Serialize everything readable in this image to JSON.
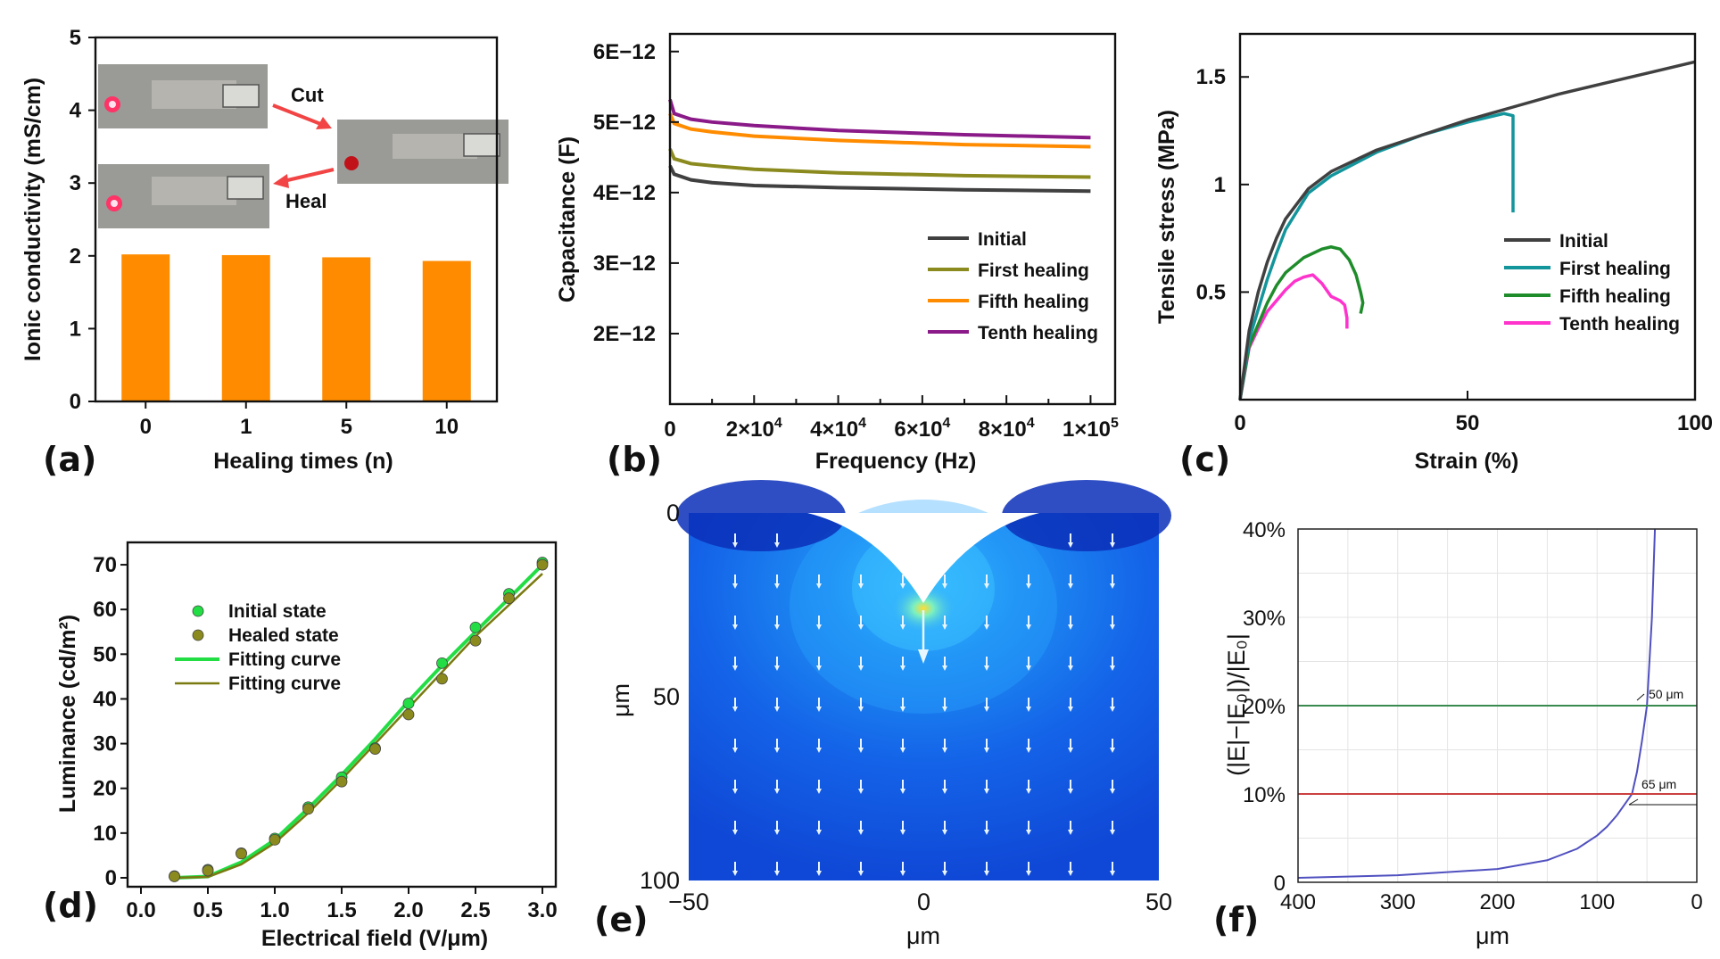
{
  "chart_data": [
    {
      "panel": "(a)",
      "type": "bar",
      "xlabel": "Healing times (n)",
      "ylabel": "Ionic conductivity (mS/cm)",
      "categories": [
        "0",
        "1",
        "5",
        "10"
      ],
      "values": [
        2.02,
        2.01,
        1.98,
        1.93
      ],
      "ylim": [
        0,
        5
      ],
      "yticks": [
        "0",
        "1",
        "2",
        "3",
        "4",
        "5"
      ],
      "color": "#ff8c00",
      "annotations": [
        "Cut",
        "Heal"
      ]
    },
    {
      "panel": "(b)",
      "type": "line",
      "xlabel": "Frequency (Hz)",
      "ylabel": "Capacitance (F)",
      "xlim": [
        0,
        110000
      ],
      "ylim": [
        1e-12,
        6.2e-12
      ],
      "xticks": [
        "0",
        "2×10",
        "4×10",
        "6×10",
        "8×10",
        "1×10"
      ],
      "xtick_exp": "4",
      "xtick_exp_last": "5",
      "yticks": [
        "2E−12",
        "3E−12",
        "4E−12",
        "5E−12",
        "6E−12"
      ],
      "series": [
        {
          "name": "Initial",
          "color": "#404040",
          "x": [
            0,
            1000,
            5000,
            10000,
            20000,
            40000,
            70000,
            100000
          ],
          "y": [
            4.38e-12,
            4.26e-12,
            4.18e-12,
            4.14e-12,
            4.1e-12,
            4.07e-12,
            4.04e-12,
            4.02e-12
          ]
        },
        {
          "name": "First healing",
          "color": "#8a8a1e",
          "x": [
            0,
            1000,
            5000,
            10000,
            20000,
            40000,
            70000,
            100000
          ],
          "y": [
            4.62e-12,
            4.48e-12,
            4.41e-12,
            4.38e-12,
            4.33e-12,
            4.28e-12,
            4.24e-12,
            4.22e-12
          ]
        },
        {
          "name": "Fifth healing",
          "color": "#ff8c00",
          "x": [
            0,
            1000,
            5000,
            10000,
            20000,
            40000,
            70000,
            100000
          ],
          "y": [
            5.12e-12,
            4.98e-12,
            4.9e-12,
            4.86e-12,
            4.8e-12,
            4.74e-12,
            4.68e-12,
            4.65e-12
          ]
        },
        {
          "name": "Tenth healing",
          "color": "#8b1a89",
          "x": [
            0,
            1000,
            5000,
            10000,
            20000,
            40000,
            70000,
            100000
          ],
          "y": [
            5.32e-12,
            5.12e-12,
            5.04e-12,
            5e-12,
            4.95e-12,
            4.88e-12,
            4.82e-12,
            4.78e-12
          ]
        }
      ]
    },
    {
      "panel": "(c)",
      "type": "line",
      "xlabel": "Strain (%)",
      "ylabel": "Tensile stress (MPa)",
      "xlim": [
        0,
        100
      ],
      "ylim": [
        0,
        1.7
      ],
      "xticks": [
        "0",
        "50",
        "100"
      ],
      "yticks": [
        "0.5",
        "1",
        "1.5"
      ],
      "series": [
        {
          "name": "Initial",
          "color": "#404040",
          "x": [
            0,
            2,
            4,
            6,
            8,
            10,
            15,
            20,
            30,
            40,
            50,
            60,
            70,
            80,
            90,
            100
          ],
          "y": [
            0,
            0.32,
            0.5,
            0.64,
            0.75,
            0.84,
            0.98,
            1.06,
            1.16,
            1.23,
            1.3,
            1.36,
            1.42,
            1.47,
            1.52,
            1.57
          ]
        },
        {
          "name": "First healing",
          "color": "#13959c",
          "x": [
            0,
            2,
            4,
            6,
            8,
            10,
            15,
            20,
            30,
            40,
            50,
            58,
            60,
            60,
            60
          ],
          "y": [
            0,
            0.28,
            0.42,
            0.56,
            0.68,
            0.79,
            0.96,
            1.04,
            1.15,
            1.23,
            1.29,
            1.33,
            1.32,
            1.05,
            0.87
          ]
        },
        {
          "name": "Fifth healing",
          "color": "#1e8c2a",
          "x": [
            0,
            2,
            4,
            6,
            8,
            10,
            14,
            18,
            20,
            22,
            24,
            25.5,
            26.5,
            27,
            26.5
          ],
          "y": [
            0,
            0.25,
            0.35,
            0.45,
            0.53,
            0.59,
            0.66,
            0.7,
            0.71,
            0.7,
            0.65,
            0.58,
            0.5,
            0.45,
            0.4
          ]
        },
        {
          "name": "Tenth healing",
          "color": "#ff33cc",
          "x": [
            0,
            2,
            4,
            6,
            8,
            10,
            12,
            14,
            16,
            18,
            20,
            22,
            23,
            23.5,
            23.5
          ],
          "y": [
            0,
            0.24,
            0.33,
            0.41,
            0.46,
            0.51,
            0.55,
            0.57,
            0.58,
            0.54,
            0.48,
            0.46,
            0.44,
            0.38,
            0.33
          ]
        }
      ]
    },
    {
      "panel": "(d)",
      "type": "scatter",
      "xlabel": "Electrical field (V/μm)",
      "ylabel": "Luminance (cd/m²)",
      "xlim": [
        -0.1,
        3.1
      ],
      "ylim": [
        -2,
        75
      ],
      "xticks": [
        "0.0",
        "0.5",
        "1.0",
        "1.5",
        "2.0",
        "2.5",
        "3.0"
      ],
      "yticks": [
        "0",
        "10",
        "20",
        "30",
        "40",
        "50",
        "60",
        "70"
      ],
      "series": [
        {
          "name": "Initial state",
          "color": "#22dd44",
          "marker": "circle",
          "x": [
            0.25,
            0.5,
            0.75,
            1.0,
            1.25,
            1.5,
            1.75,
            2.0,
            2.25,
            2.5,
            2.75,
            3.0
          ],
          "y": [
            0.4,
            1.8,
            5.5,
            8.8,
            15.8,
            22.5,
            29,
            39,
            48,
            56,
            63.5,
            70.5
          ]
        },
        {
          "name": "Healed state",
          "color": "#8a8a1e",
          "marker": "circle",
          "x": [
            0.25,
            0.5,
            0.75,
            1.0,
            1.25,
            1.5,
            1.75,
            2.0,
            2.25,
            2.5,
            2.75,
            3.0
          ],
          "y": [
            0.3,
            1.6,
            5.4,
            8.5,
            15.4,
            21.5,
            28.8,
            36.5,
            44.5,
            53,
            62.5,
            70
          ]
        },
        {
          "name": "Fitting curve",
          "color": "#22dd44",
          "marker": "line",
          "x": [
            0.25,
            0.5,
            0.75,
            1.0,
            1.25,
            1.5,
            1.75,
            2.0,
            2.25,
            2.5,
            2.75,
            3.0
          ],
          "y": [
            0,
            0.3,
            3.5,
            8.5,
            15.5,
            23,
            31,
            39.5,
            47.5,
            55,
            62.5,
            70
          ]
        },
        {
          "name": "Fitting curve",
          "color": "#7a7a10",
          "marker": "line",
          "x": [
            0.25,
            0.5,
            0.75,
            1.0,
            1.25,
            1.5,
            1.75,
            2.0,
            2.25,
            2.5,
            2.75,
            3.0
          ],
          "y": [
            0,
            0.2,
            3.0,
            7.8,
            14.5,
            22,
            30,
            38,
            46,
            54,
            61,
            68
          ]
        }
      ]
    },
    {
      "panel": "(e)",
      "type": "heatmap",
      "xlabel": "μm",
      "ylabel": "μm",
      "xlim": [
        -50,
        50
      ],
      "ylim": [
        0,
        100
      ],
      "xticks": [
        "−50",
        "0",
        "50"
      ],
      "yticks": [
        "0",
        "50",
        "100"
      ],
      "notch_depth": 25
    },
    {
      "panel": "(f)",
      "type": "line",
      "xlabel": "μm",
      "ylabel": "(|E|−|E₀|)/|E₀|",
      "xlim": [
        400,
        0
      ],
      "ylim": [
        0,
        40
      ],
      "xticks": [
        "400",
        "300",
        "200",
        "100",
        "0"
      ],
      "yticks": [
        "0",
        "10%",
        "20%",
        "30%",
        "40%"
      ],
      "series": [
        {
          "name": "curve",
          "color": "#5050c0",
          "x": [
            400,
            300,
            200,
            150,
            120,
            100,
            90,
            80,
            70,
            65,
            60,
            55,
            50,
            45,
            42
          ],
          "y": [
            0.5,
            0.8,
            1.5,
            2.5,
            3.8,
            5.3,
            6.3,
            7.6,
            9.2,
            10,
            12.5,
            16,
            20,
            30,
            40
          ]
        },
        {
          "name": "20% line",
          "color": "#3a8a50",
          "x": [
            400,
            0
          ],
          "y": [
            20,
            20
          ]
        },
        {
          "name": "10% line",
          "color": "#cc4040",
          "x": [
            400,
            0
          ],
          "y": [
            10,
            10
          ]
        }
      ],
      "annotations": [
        "50 μm",
        "65 μm"
      ]
    }
  ],
  "panel_labels": [
    "(a)",
    "(b)",
    "(c)",
    "(d)",
    "(e)",
    "(f)"
  ]
}
